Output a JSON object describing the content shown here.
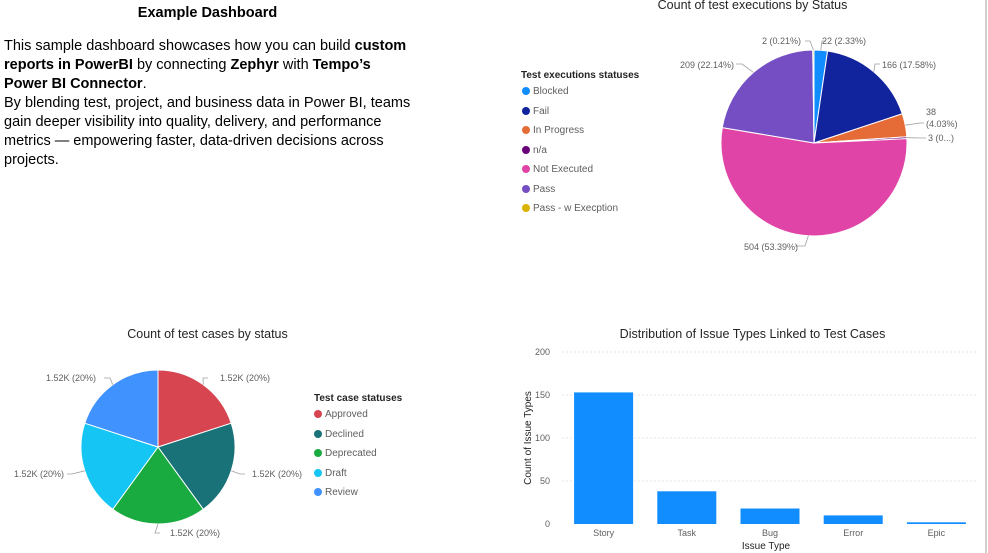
{
  "intro": {
    "title": "Example Dashboard",
    "p1_a": "This sample dashboard showcases how you can build ",
    "p1_b": "custom reports in PowerBI",
    "p1_c": " by connecting ",
    "p1_d": "Zephyr",
    "p1_e": " with ",
    "p1_f": "Tempo’s Power BI Connector",
    "p1_g": ".",
    "p2": "By blending test, project, and business data in Power BI, teams gain deeper visibility into quality, delivery, and performance metrics — empowering faster, data-driven decisions across projects."
  },
  "chart_data": [
    {
      "type": "pie",
      "title": "Count of test executions by Status",
      "legend_title": "Test executions statuses",
      "legend_position": "left",
      "slices": [
        {
          "name": "Blocked",
          "value": 22,
          "label": "22 (2.33%)",
          "color": "#118DFF"
        },
        {
          "name": "Fail",
          "value": 166,
          "label": "166 (17.58%)",
          "color": "#12239E"
        },
        {
          "name": "In Progress",
          "value": 38,
          "label": "38 (4.03%)",
          "color": "#E66C37"
        },
        {
          "name": "n/a",
          "value": 3,
          "label": "3 (0...)",
          "color": "#6B007B"
        },
        {
          "name": "Not Executed",
          "value": 504,
          "label": "504 (53.39%)",
          "color": "#E044A7"
        },
        {
          "name": "Pass",
          "value": 209,
          "label": "209 (22.14%)",
          "color": "#744EC2"
        },
        {
          "name": "Pass - w Execption",
          "value": 2,
          "label": "2 (0.21%)",
          "color": "#D9B300"
        }
      ]
    },
    {
      "type": "pie",
      "title": "Count of test cases by status",
      "legend_title": "Test case statuses",
      "legend_position": "right",
      "slices": [
        {
          "name": "Approved",
          "value": 1520,
          "label": "1.52K (20%)",
          "color": "#D64550"
        },
        {
          "name": "Declined",
          "value": 1520,
          "label": "1.52K (20%)",
          "color": "#197278"
        },
        {
          "name": "Deprecated",
          "value": 1520,
          "label": "1.52K (20%)",
          "color": "#1AAB40"
        },
        {
          "name": "Draft",
          "value": 1520,
          "label": "1.52K (20%)",
          "color": "#15C6F4"
        },
        {
          "name": "Review",
          "value": 1520,
          "label": "1.52K (20%)",
          "color": "#4092FF"
        }
      ]
    },
    {
      "type": "bar",
      "title": "Distribution of Issue Types Linked to Test Cases",
      "categories": [
        "Story",
        "Task",
        "Bug",
        "Error",
        "Epic"
      ],
      "values": [
        153,
        38,
        18,
        10,
        2
      ],
      "xlabel": "Issue Type",
      "ylabel": "Count of Issue Types",
      "ylim": [
        0,
        200
      ],
      "yticks": [
        0,
        50,
        100,
        150,
        200
      ],
      "color": "#118DFF",
      "grid": true
    }
  ]
}
